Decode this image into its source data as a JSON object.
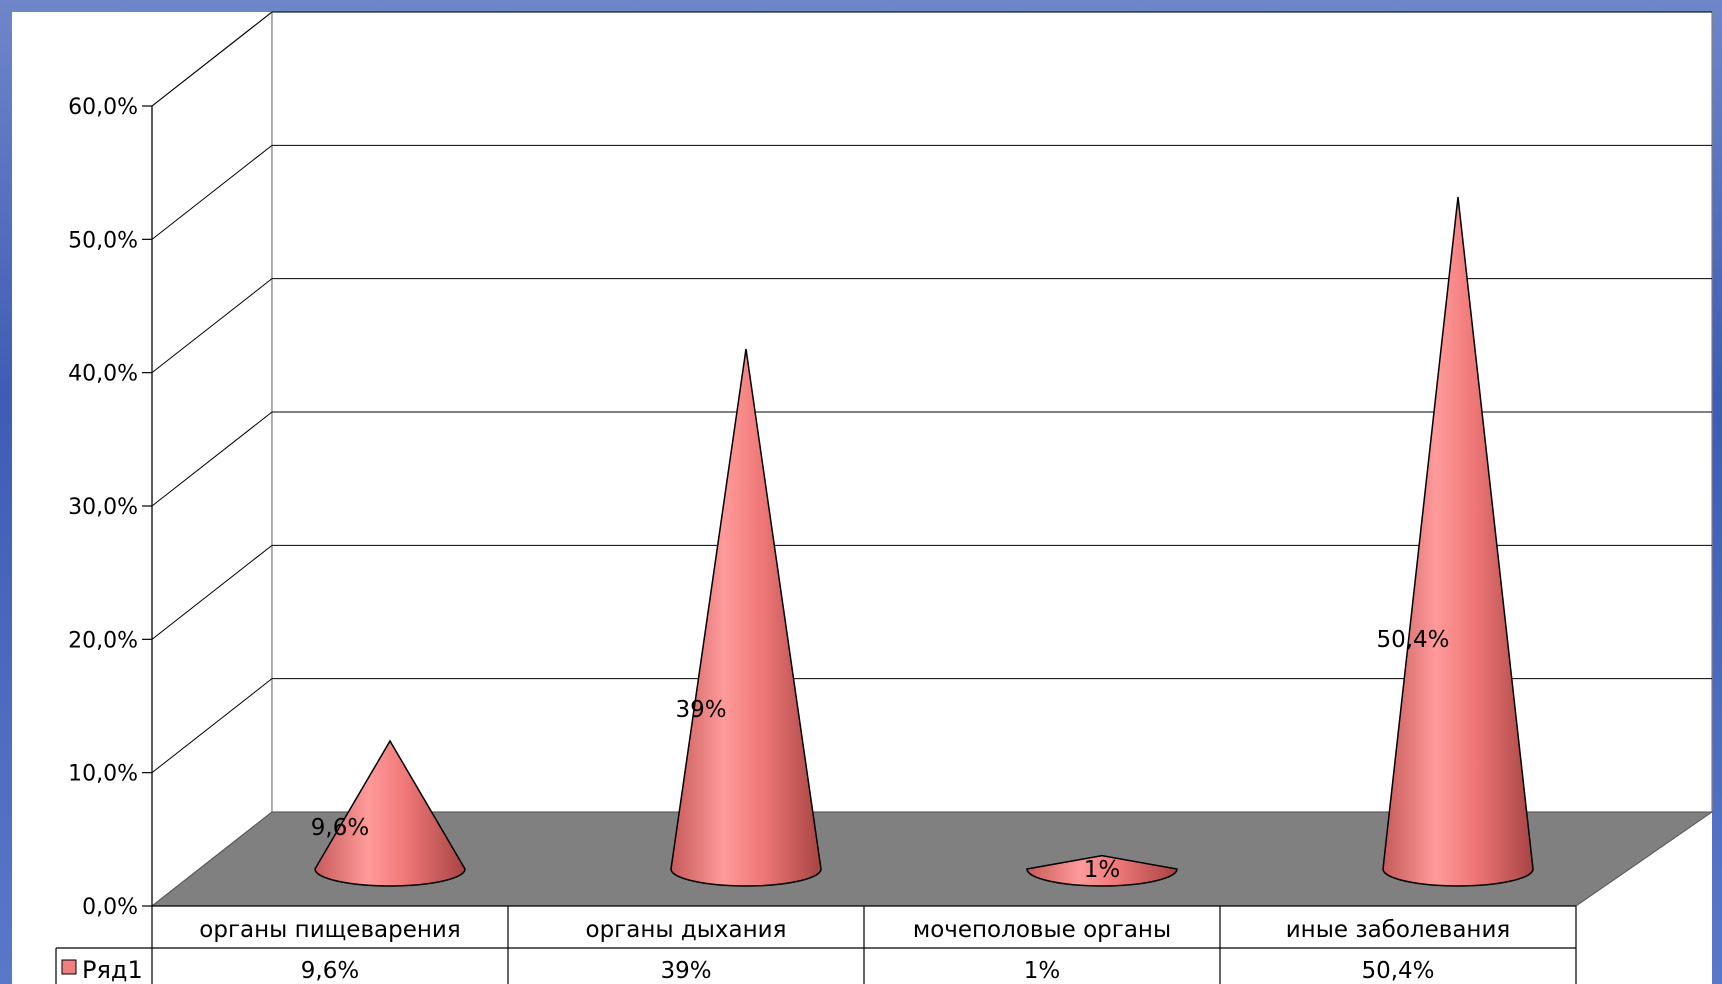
{
  "chart_data": {
    "type": "bar",
    "style": "3d-cone",
    "categories": [
      "органы пищеварения",
      "органы дыхания",
      "мочеполовые органы",
      "иные заболевания"
    ],
    "series": [
      {
        "name": "Ряд1",
        "values": [
          9.6,
          39,
          1,
          50.4
        ],
        "data_labels": [
          "9,6%",
          "39%",
          "1%",
          "50,4%"
        ],
        "color": "#f08080"
      }
    ],
    "ylim": [
      0,
      60
    ],
    "yticks": [
      "0,0%",
      "10,0%",
      "20,0%",
      "30,0%",
      "40,0%",
      "50,0%",
      "60,0%"
    ],
    "grid": true,
    "data_table": true,
    "floor_color": "#808080",
    "wall_color": "#ffffff"
  }
}
